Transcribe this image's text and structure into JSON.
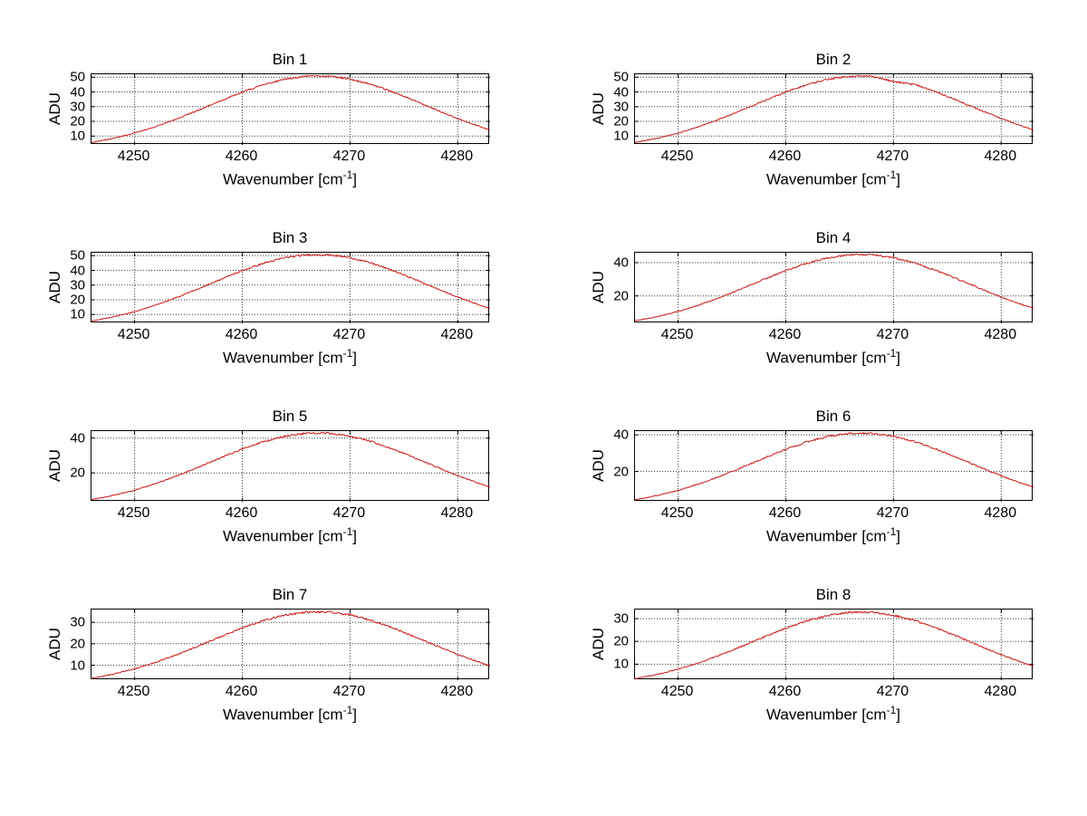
{
  "figure": {
    "background": "#ffffff",
    "line_color": "#cc1414",
    "ylabel": "ADU",
    "xlabel_prefix": "Wavenumber [cm",
    "xlabel_sup": "-1",
    "xlabel_suffix": "]"
  },
  "chart_data": [
    {
      "type": "line",
      "title": "Bin 1",
      "xlabel": "Wavenumber [cm^-1]",
      "ylabel": "ADU",
      "grid": true,
      "legend": "none",
      "line_color": "#cc1414",
      "xlim": [
        4246,
        4283
      ],
      "ylim": [
        4,
        52
      ],
      "xticks": [
        4250,
        4260,
        4270,
        4280
      ],
      "yticks": [
        10,
        20,
        30,
        40,
        50
      ],
      "x": [
        4246,
        4248,
        4250,
        4252,
        4254,
        4256,
        4258,
        4260,
        4262,
        4264,
        4266,
        4268,
        4270,
        4272,
        4274,
        4276,
        4278,
        4280,
        4282,
        4283
      ],
      "values": [
        5.6,
        8.4,
        12.0,
        16.6,
        21.9,
        27.8,
        34.0,
        39.9,
        45.0,
        48.8,
        50.7,
        50.7,
        48.8,
        45.0,
        39.9,
        34.0,
        27.8,
        21.9,
        16.6,
        14.2
      ]
    },
    {
      "type": "line",
      "title": "Bin 2",
      "xlabel": "Wavenumber [cm^-1]",
      "ylabel": "ADU",
      "grid": true,
      "legend": "none",
      "line_color": "#cc1414",
      "xlim": [
        4246,
        4283
      ],
      "ylim": [
        4,
        52
      ],
      "xticks": [
        4250,
        4260,
        4270,
        4280
      ],
      "yticks": [
        10,
        20,
        30,
        40,
        50
      ],
      "x": [
        4246,
        4248,
        4250,
        4252,
        4254,
        4256,
        4258,
        4260,
        4262,
        4264,
        4266,
        4268,
        4270,
        4272,
        4274,
        4276,
        4278,
        4280,
        4282,
        4283
      ],
      "values": [
        5.6,
        8.4,
        12.0,
        16.6,
        21.9,
        27.8,
        34.0,
        39.9,
        45.0,
        48.8,
        50.7,
        50.7,
        47.0,
        45.0,
        39.9,
        34.0,
        27.8,
        21.9,
        16.6,
        14.2
      ]
    },
    {
      "type": "line",
      "title": "Bin 3",
      "xlabel": "Wavenumber [cm^-1]",
      "ylabel": "ADU",
      "grid": true,
      "legend": "none",
      "line_color": "#cc1414",
      "xlim": [
        4246,
        4283
      ],
      "ylim": [
        4,
        52
      ],
      "xticks": [
        4250,
        4260,
        4270,
        4280
      ],
      "yticks": [
        10,
        20,
        30,
        40,
        50
      ],
      "x": [
        4246,
        4248,
        4250,
        4252,
        4254,
        4256,
        4258,
        4260,
        4262,
        4264,
        4266,
        4268,
        4270,
        4272,
        4274,
        4276,
        4278,
        4280,
        4282,
        4283
      ],
      "values": [
        5.5,
        8.3,
        11.9,
        16.5,
        21.8,
        27.7,
        33.9,
        39.8,
        44.9,
        48.7,
        50.6,
        50.6,
        48.7,
        44.9,
        39.8,
        33.9,
        27.7,
        21.8,
        16.5,
        14.1
      ]
    },
    {
      "type": "line",
      "title": "Bin 4",
      "xlabel": "Wavenumber [cm^-1]",
      "ylabel": "ADU",
      "grid": true,
      "legend": "none",
      "line_color": "#cc1414",
      "xlim": [
        4246,
        4283
      ],
      "ylim": [
        3.5,
        46
      ],
      "xticks": [
        4250,
        4260,
        4270,
        4280
      ],
      "yticks": [
        20,
        40
      ],
      "x": [
        4246,
        4248,
        4250,
        4252,
        4254,
        4256,
        4258,
        4260,
        4262,
        4264,
        4266,
        4268,
        4270,
        4272,
        4274,
        4276,
        4278,
        4280,
        4282,
        4283
      ],
      "values": [
        5.0,
        7.4,
        10.6,
        14.6,
        19.3,
        24.6,
        30.0,
        35.2,
        39.7,
        43.0,
        44.8,
        44.8,
        43.0,
        39.7,
        35.2,
        30.0,
        24.6,
        19.3,
        14.6,
        12.5
      ]
    },
    {
      "type": "line",
      "title": "Bin 5",
      "xlabel": "Wavenumber [cm^-1]",
      "ylabel": "ADU",
      "grid": true,
      "legend": "none",
      "line_color": "#cc1414",
      "xlim": [
        4246,
        4283
      ],
      "ylim": [
        3.5,
        44
      ],
      "xticks": [
        4250,
        4260,
        4270,
        4280
      ],
      "yticks": [
        20,
        40
      ],
      "x": [
        4246,
        4248,
        4250,
        4252,
        4254,
        4256,
        4258,
        4260,
        4262,
        4264,
        4266,
        4268,
        4270,
        4272,
        4274,
        4276,
        4278,
        4280,
        4282,
        4283
      ],
      "values": [
        4.7,
        7.1,
        10.1,
        14.0,
        18.5,
        23.5,
        28.7,
        33.7,
        38.0,
        41.1,
        42.8,
        42.8,
        41.1,
        38.0,
        33.7,
        28.7,
        23.5,
        18.5,
        14.0,
        12.0
      ]
    },
    {
      "type": "line",
      "title": "Bin 6",
      "xlabel": "Wavenumber [cm^-1]",
      "ylabel": "ADU",
      "grid": true,
      "legend": "none",
      "line_color": "#cc1414",
      "xlim": [
        4246,
        4283
      ],
      "ylim": [
        3.5,
        42
      ],
      "xticks": [
        4250,
        4260,
        4270,
        4280
      ],
      "yticks": [
        20,
        40
      ],
      "x": [
        4246,
        4248,
        4250,
        4252,
        4254,
        4256,
        4258,
        4260,
        4262,
        4264,
        4266,
        4268,
        4270,
        4272,
        4274,
        4276,
        4278,
        4280,
        4282,
        4283
      ],
      "values": [
        4.5,
        6.8,
        9.7,
        13.3,
        17.6,
        22.4,
        27.3,
        32.1,
        36.2,
        39.2,
        40.8,
        40.8,
        39.2,
        36.2,
        32.1,
        27.3,
        22.4,
        17.6,
        13.3,
        11.4
      ]
    },
    {
      "type": "line",
      "title": "Bin 7",
      "xlabel": "Wavenumber [cm^-1]",
      "ylabel": "ADU",
      "grid": true,
      "legend": "none",
      "line_color": "#cc1414",
      "xlim": [
        4246,
        4283
      ],
      "ylim": [
        3,
        36
      ],
      "xticks": [
        4250,
        4260,
        4270,
        4280
      ],
      "yticks": [
        10,
        20,
        30
      ],
      "x": [
        4246,
        4248,
        4250,
        4252,
        4254,
        4256,
        4258,
        4260,
        4262,
        4264,
        4266,
        4268,
        4270,
        4272,
        4274,
        4276,
        4278,
        4280,
        4282,
        4283
      ],
      "values": [
        3.9,
        5.8,
        8.3,
        11.4,
        15.0,
        19.1,
        23.3,
        27.4,
        30.9,
        33.5,
        34.8,
        34.8,
        33.5,
        30.9,
        27.4,
        23.3,
        19.1,
        15.0,
        11.4,
        9.7
      ]
    },
    {
      "type": "line",
      "title": "Bin 8",
      "xlabel": "Wavenumber [cm^-1]",
      "ylabel": "ADU",
      "grid": true,
      "legend": "none",
      "line_color": "#cc1414",
      "xlim": [
        4246,
        4283
      ],
      "ylim": [
        3,
        34
      ],
      "xticks": [
        4250,
        4260,
        4270,
        4280
      ],
      "yticks": [
        10,
        20,
        30
      ],
      "x": [
        4246,
        4248,
        4250,
        4252,
        4254,
        4256,
        4258,
        4260,
        4262,
        4264,
        4266,
        4268,
        4270,
        4272,
        4274,
        4276,
        4278,
        4280,
        4282,
        4283
      ],
      "values": [
        3.6,
        5.4,
        7.8,
        10.7,
        14.2,
        18.0,
        22.0,
        25.8,
        29.1,
        31.5,
        32.8,
        32.8,
        31.5,
        29.1,
        25.8,
        22.0,
        18.0,
        14.2,
        10.7,
        9.2
      ]
    }
  ]
}
